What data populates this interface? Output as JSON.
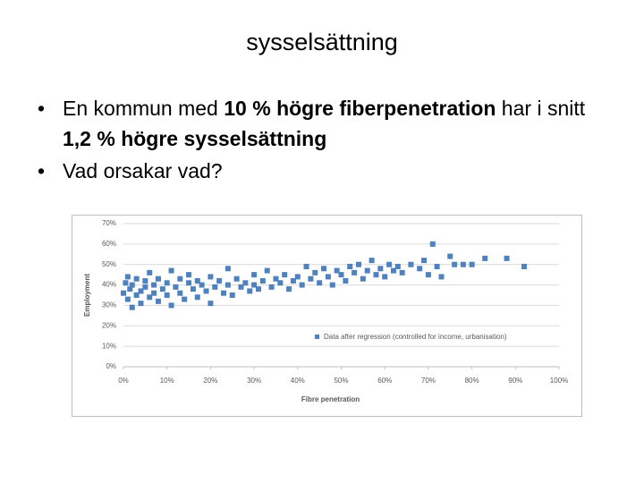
{
  "slide": {
    "title": "sysselsättning",
    "bullets": [
      [
        "En kommun med ",
        "10 % högre fiberpenetration",
        " har i snitt ",
        "1,2 % högre sysselsättning"
      ],
      [
        "Vad orsakar vad?"
      ]
    ]
  },
  "chart_data": {
    "type": "scatter",
    "x_label": "Fibre penetration",
    "y_label": "Employment",
    "xlim": [
      0,
      100
    ],
    "ylim": [
      0,
      70
    ],
    "xticks": [
      {
        "value": 0,
        "label": "0%"
      },
      {
        "value": 10,
        "label": "10%"
      },
      {
        "value": 20,
        "label": "20%"
      },
      {
        "value": 30,
        "label": "30%"
      },
      {
        "value": 40,
        "label": "40%"
      },
      {
        "value": 50,
        "label": "50%"
      },
      {
        "value": 60,
        "label": "60%"
      },
      {
        "value": 70,
        "label": "70%"
      },
      {
        "value": 80,
        "label": "80%"
      },
      {
        "value": 90,
        "label": "90%"
      },
      {
        "value": 100,
        "label": "100%"
      }
    ],
    "yticks": [
      {
        "value": 0,
        "label": "0%"
      },
      {
        "value": 10,
        "label": "10%"
      },
      {
        "value": 20,
        "label": "20%"
      },
      {
        "value": 30,
        "label": "30%"
      },
      {
        "value": 40,
        "label": "40%"
      },
      {
        "value": 50,
        "label": "50%"
      },
      {
        "value": 60,
        "label": "60%"
      },
      {
        "value": 70,
        "label": "70%"
      }
    ],
    "grid": true,
    "x": [
      0,
      0.5,
      1,
      1,
      1.5,
      2,
      2,
      3,
      3,
      4,
      4,
      5,
      5,
      6,
      6,
      7,
      7,
      8,
      8,
      9,
      10,
      10,
      11,
      11,
      12,
      13,
      13,
      14,
      15,
      15,
      16,
      17,
      17,
      18,
      19,
      20,
      20,
      21,
      22,
      23,
      24,
      24,
      25,
      26,
      27,
      28,
      29,
      30,
      30,
      31,
      32,
      33,
      34,
      35,
      36,
      37,
      38,
      39,
      40,
      41,
      42,
      43,
      44,
      45,
      46,
      47,
      48,
      49,
      50,
      51,
      52,
      53,
      54,
      55,
      56,
      57,
      58,
      59,
      60,
      61,
      62,
      63,
      64,
      66,
      68,
      69,
      70,
      71,
      72,
      73,
      75,
      76,
      78,
      80,
      83,
      88,
      92
    ],
    "series": [
      {
        "name": "Data after regression (controlled for income, urbanisation)",
        "color": "#4f81bd",
        "values": [
          36,
          41,
          33,
          44,
          38,
          29,
          40,
          35,
          43,
          37,
          31,
          42,
          39,
          34,
          46,
          40,
          36,
          32,
          43,
          38,
          41,
          35,
          47,
          30,
          39,
          43,
          36,
          33,
          41,
          45,
          38,
          34,
          42,
          40,
          37,
          44,
          31,
          39,
          42,
          36,
          48,
          40,
          35,
          43,
          39,
          41,
          37,
          45,
          40,
          38,
          42,
          47,
          39,
          43,
          41,
          45,
          38,
          42,
          44,
          40,
          49,
          43,
          46,
          41,
          48,
          44,
          40,
          47,
          45,
          42,
          49,
          46,
          50,
          43,
          47,
          52,
          45,
          48,
          44,
          50,
          47,
          49,
          46,
          50,
          48,
          52,
          45,
          60,
          49,
          44,
          54,
          50,
          50,
          50,
          53,
          53,
          49
        ]
      }
    ]
  }
}
